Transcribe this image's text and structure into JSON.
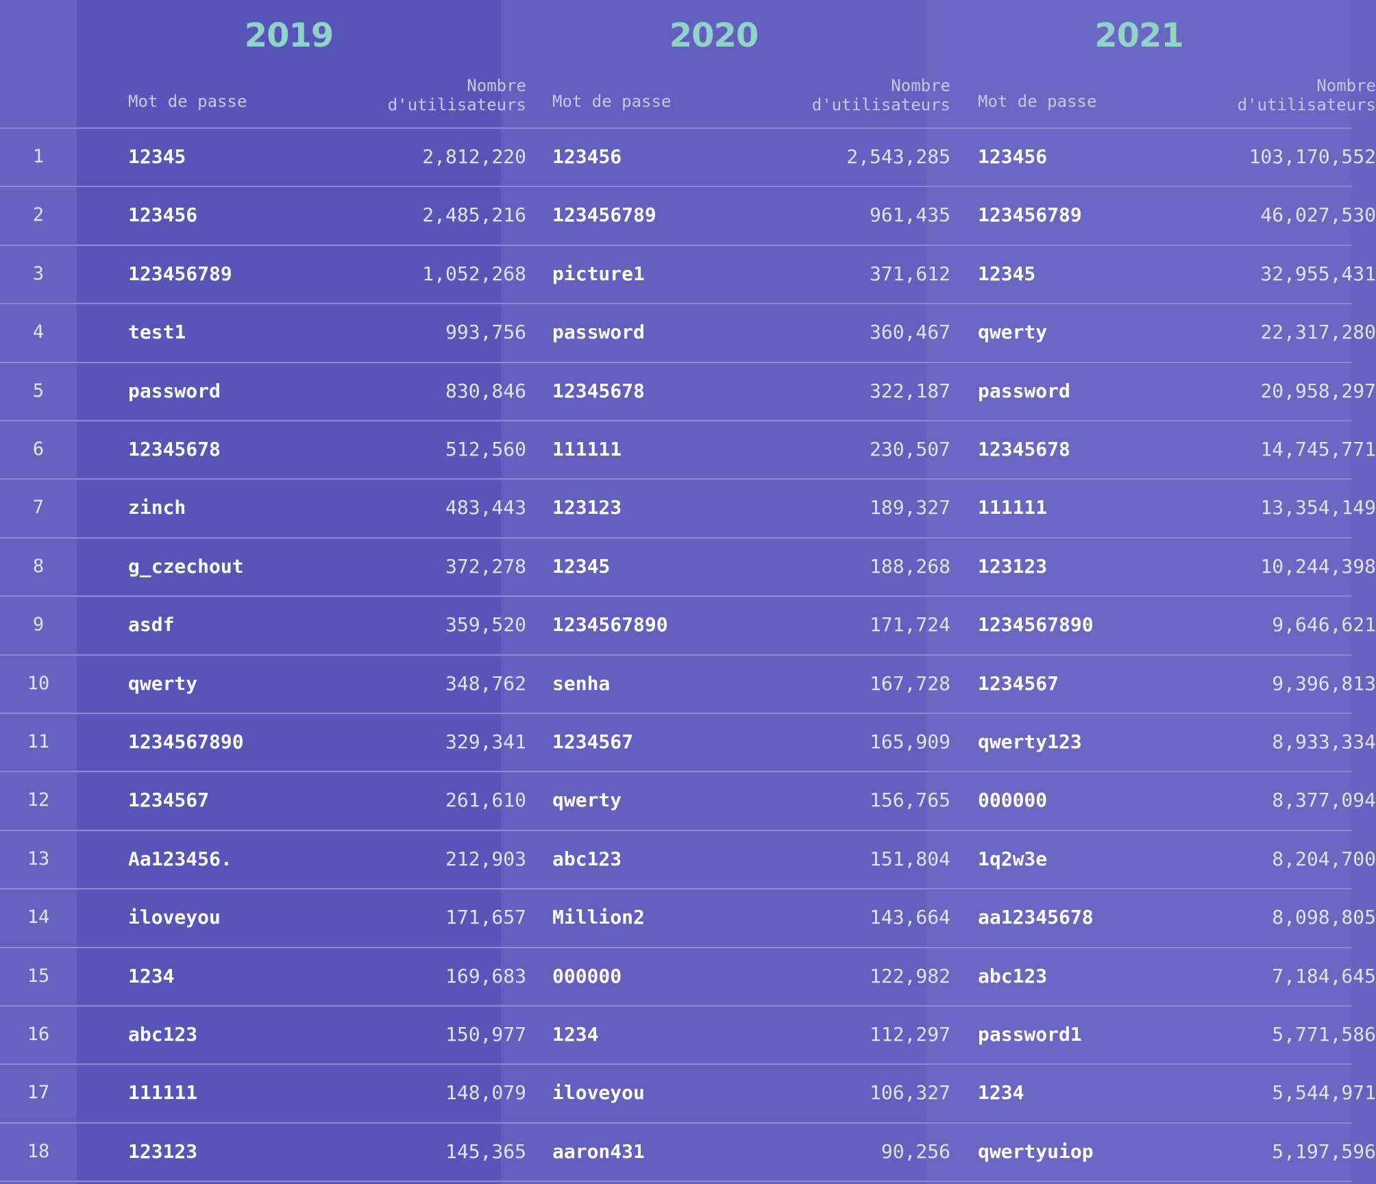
{
  "chart_data": {
    "type": "table",
    "columns": [
      "Mot de passe",
      "Nombre d'utilisateurs"
    ],
    "header": {
      "password_label": "Mot de passe",
      "users_label_line1": "Nombre",
      "users_label_line2": "d'utilisateurs"
    },
    "ranks": [
      "1",
      "2",
      "3",
      "4",
      "5",
      "6",
      "7",
      "8",
      "9",
      "10",
      "11",
      "12",
      "13",
      "14",
      "15",
      "16",
      "17",
      "18"
    ],
    "years": [
      {
        "year": "2019",
        "rows": [
          {
            "password": "12345",
            "users": "2,812,220"
          },
          {
            "password": "123456",
            "users": "2,485,216"
          },
          {
            "password": "123456789",
            "users": "1,052,268"
          },
          {
            "password": "test1",
            "users": "993,756"
          },
          {
            "password": "password",
            "users": "830,846"
          },
          {
            "password": "12345678",
            "users": "512,560"
          },
          {
            "password": "zinch",
            "users": "483,443"
          },
          {
            "password": "g_czechout",
            "users": "372,278"
          },
          {
            "password": "asdf",
            "users": "359,520"
          },
          {
            "password": "qwerty",
            "users": "348,762"
          },
          {
            "password": "1234567890",
            "users": "329,341"
          },
          {
            "password": "1234567",
            "users": "261,610"
          },
          {
            "password": "Aa123456.",
            "users": "212,903"
          },
          {
            "password": "iloveyou",
            "users": "171,657"
          },
          {
            "password": "1234",
            "users": "169,683"
          },
          {
            "password": "abc123",
            "users": "150,977"
          },
          {
            "password": "111111",
            "users": "148,079"
          },
          {
            "password": "123123",
            "users": "145,365"
          }
        ]
      },
      {
        "year": "2020",
        "rows": [
          {
            "password": "123456",
            "users": "2,543,285"
          },
          {
            "password": "123456789",
            "users": "961,435"
          },
          {
            "password": "picture1",
            "users": "371,612"
          },
          {
            "password": "password",
            "users": "360,467"
          },
          {
            "password": "12345678",
            "users": "322,187"
          },
          {
            "password": "111111",
            "users": "230,507"
          },
          {
            "password": "123123",
            "users": "189,327"
          },
          {
            "password": "12345",
            "users": "188,268"
          },
          {
            "password": "1234567890",
            "users": "171,724"
          },
          {
            "password": "senha",
            "users": "167,728"
          },
          {
            "password": "1234567",
            "users": "165,909"
          },
          {
            "password": "qwerty",
            "users": "156,765"
          },
          {
            "password": "abc123",
            "users": "151,804"
          },
          {
            "password": "Million2",
            "users": "143,664"
          },
          {
            "password": "000000",
            "users": "122,982"
          },
          {
            "password": "1234",
            "users": "112,297"
          },
          {
            "password": "iloveyou",
            "users": "106,327"
          },
          {
            "password": "aaron431",
            "users": "90,256"
          }
        ]
      },
      {
        "year": "2021",
        "rows": [
          {
            "password": "123456",
            "users": "103,170,552"
          },
          {
            "password": "123456789",
            "users": "46,027,530"
          },
          {
            "password": "12345",
            "users": "32,955,431"
          },
          {
            "password": "qwerty",
            "users": "22,317,280"
          },
          {
            "password": "password",
            "users": "20,958,297"
          },
          {
            "password": "12345678",
            "users": "14,745,771"
          },
          {
            "password": "111111",
            "users": "13,354,149"
          },
          {
            "password": "123123",
            "users": "10,244,398"
          },
          {
            "password": "1234567890",
            "users": "9,646,621"
          },
          {
            "password": "1234567",
            "users": "9,396,813"
          },
          {
            "password": "qwerty123",
            "users": "8,933,334"
          },
          {
            "password": "000000",
            "users": "8,377,094"
          },
          {
            "password": "1q2w3e",
            "users": "8,204,700"
          },
          {
            "password": "aa12345678",
            "users": "8,098,805"
          },
          {
            "password": "abc123",
            "users": "7,184,645"
          },
          {
            "password": "password1",
            "users": "5,771,586"
          },
          {
            "password": "1234",
            "users": "5,544,971"
          },
          {
            "password": "qwertyuiop",
            "users": "5,197,596"
          }
        ]
      }
    ]
  },
  "colors": {
    "year_heading": "#8fd4c8",
    "background": "#6563bf",
    "band_2019": "#5756b8",
    "band_2020": "#625fbe",
    "band_2021": "#6a67c3",
    "divider": "#8d8ad1"
  }
}
